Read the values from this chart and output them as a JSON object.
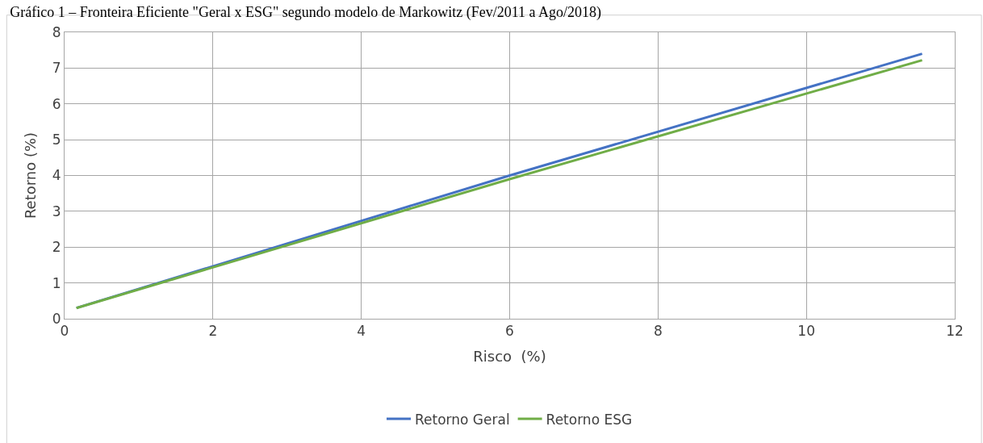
{
  "chart_data": {
    "type": "line",
    "title": "Gráfico 1 – Fronteira Eficiente \"Geral x ESG\" segundo modelo de Markowitz (Fev/2011 a Ago/2018)",
    "xlabel": "Risco  (%)",
    "ylabel": "Retorno (%)",
    "series": [
      {
        "name": "Retorno Geral",
        "color": "#4472c4",
        "x": [
          0.16,
          6,
          11.56
        ],
        "values": [
          0.3,
          4.0,
          7.4
        ]
      },
      {
        "name": "Retorno ESG",
        "color": "#70ad47",
        "x": [
          0.16,
          6,
          11.56
        ],
        "values": [
          0.3,
          3.9,
          7.22
        ]
      }
    ],
    "xlim": [
      0,
      12
    ],
    "xticks": [
      0,
      2,
      4,
      6,
      8,
      10,
      12
    ],
    "ylim": [
      0,
      8
    ],
    "yticks": [
      0,
      1,
      2,
      3,
      4,
      5,
      6,
      7,
      8
    ],
    "grid": true,
    "legend": "bottom",
    "marker": "none",
    "line_style": "solid"
  }
}
